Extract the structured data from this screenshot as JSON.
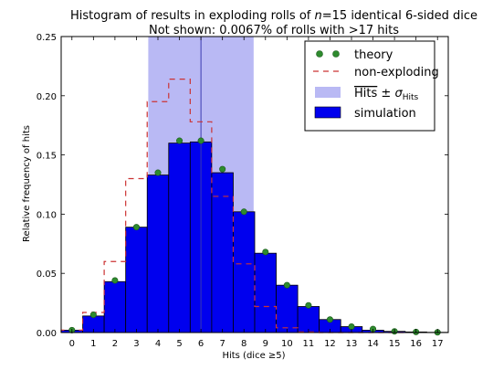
{
  "chart_data": {
    "type": "bar",
    "title_line1": "Histogram of results in exploding rolls of n=15 identical 6-sided dice",
    "title_line2": "Not shown: 0.0067% of rolls with >17 hits",
    "xlabel": "Hits (dice ≥5)",
    "ylabel": "Relative frequency of hits",
    "xlim": [
      -0.5,
      17.5
    ],
    "ylim": [
      0,
      0.25
    ],
    "x_ticks": [
      0,
      1,
      2,
      3,
      4,
      5,
      6,
      7,
      8,
      9,
      10,
      11,
      12,
      13,
      14,
      15,
      16,
      17
    ],
    "y_ticks": [
      0.0,
      0.05,
      0.1,
      0.15,
      0.2,
      0.25
    ],
    "y_tick_labels": [
      "0.00",
      "0.05",
      "0.10",
      "0.15",
      "0.20",
      "0.25"
    ],
    "mean": 6.0,
    "sigma_band": [
      3.55,
      8.45
    ],
    "series": [
      {
        "name": "theory",
        "kind": "points",
        "color": "#2e8b2e",
        "x": [
          0,
          1,
          2,
          3,
          4,
          5,
          6,
          7,
          8,
          9,
          10,
          11,
          12,
          13,
          14,
          15,
          16,
          17
        ],
        "values": [
          0.002,
          0.015,
          0.044,
          0.089,
          0.135,
          0.162,
          0.162,
          0.138,
          0.102,
          0.068,
          0.04,
          0.023,
          0.011,
          0.005,
          0.003,
          0.001,
          0.0005,
          0.0002
        ]
      },
      {
        "name": "non-exploding",
        "kind": "step",
        "color": "#cc3333",
        "x": [
          0,
          1,
          2,
          3,
          4,
          5,
          6,
          7,
          8,
          9,
          10,
          11,
          12,
          13,
          14,
          15
        ],
        "values": [
          0.002,
          0.017,
          0.06,
          0.13,
          0.195,
          0.214,
          0.178,
          0.115,
          0.058,
          0.022,
          0.004,
          0.0005,
          0,
          0,
          0,
          0
        ]
      },
      {
        "name": "simulation",
        "kind": "bars",
        "color": "#0000ee",
        "x": [
          0,
          1,
          2,
          3,
          4,
          5,
          6,
          7,
          8,
          9,
          10,
          11,
          12,
          13,
          14,
          15,
          16,
          17
        ],
        "values": [
          0.002,
          0.014,
          0.043,
          0.089,
          0.133,
          0.16,
          0.161,
          0.135,
          0.102,
          0.067,
          0.04,
          0.022,
          0.011,
          0.005,
          0.002,
          0.001,
          0.0005,
          0.0002
        ]
      }
    ],
    "legend": {
      "placement": "top-right",
      "theory": "theory",
      "non_exploding": "non-exploding",
      "band": "Hits ± σHits",
      "simulation": "simulation"
    },
    "colors": {
      "band": "#b9b9f4",
      "mean_line": "#3a3ab0"
    }
  }
}
